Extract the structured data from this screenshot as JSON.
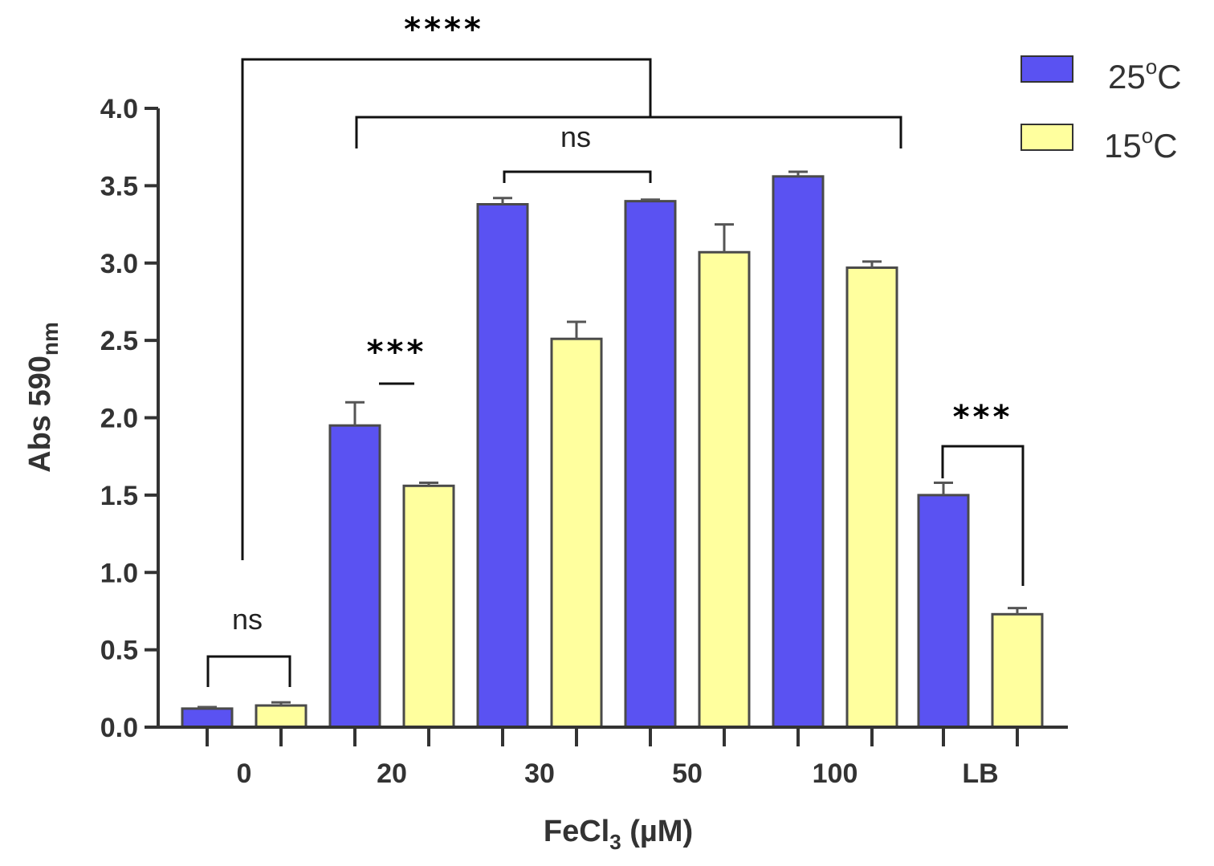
{
  "chart_data": {
    "type": "bar",
    "categories": [
      "0",
      "20",
      "30",
      "50",
      "100",
      "LB"
    ],
    "series": [
      {
        "name": "25°C",
        "color": "#5a52f2",
        "values": [
          0.12,
          1.95,
          3.38,
          3.4,
          3.56,
          1.5
        ],
        "errors": [
          0.01,
          0.15,
          0.04,
          0.01,
          0.03,
          0.08
        ]
      },
      {
        "name": "15°C",
        "color": "#ffff9e",
        "values": [
          0.14,
          1.56,
          2.51,
          3.07,
          2.97,
          0.73
        ],
        "errors": [
          0.02,
          0.02,
          0.11,
          0.18,
          0.04,
          0.04
        ]
      }
    ],
    "xlabel_main": "FeCl",
    "xlabel_sub": "3",
    "xlabel_unit": " (µM)",
    "ylabel_main": "Abs 590",
    "ylabel_sub": "nm",
    "ylim": [
      0,
      4.0
    ],
    "yticks": [
      "0.0",
      "0.5",
      "1.0",
      "1.5",
      "2.0",
      "2.5",
      "3.0",
      "3.5",
      "4.0"
    ],
    "legend_position": "top-right",
    "legend_suffix": "C",
    "legend_temps": [
      "25",
      "15"
    ],
    "legend_degree": "o",
    "annotations": {
      "sig_top": "****",
      "sig_ns_wide": "ns",
      "sig_20": "***",
      "sig_ns_0": "ns",
      "sig_lb": "***"
    }
  }
}
